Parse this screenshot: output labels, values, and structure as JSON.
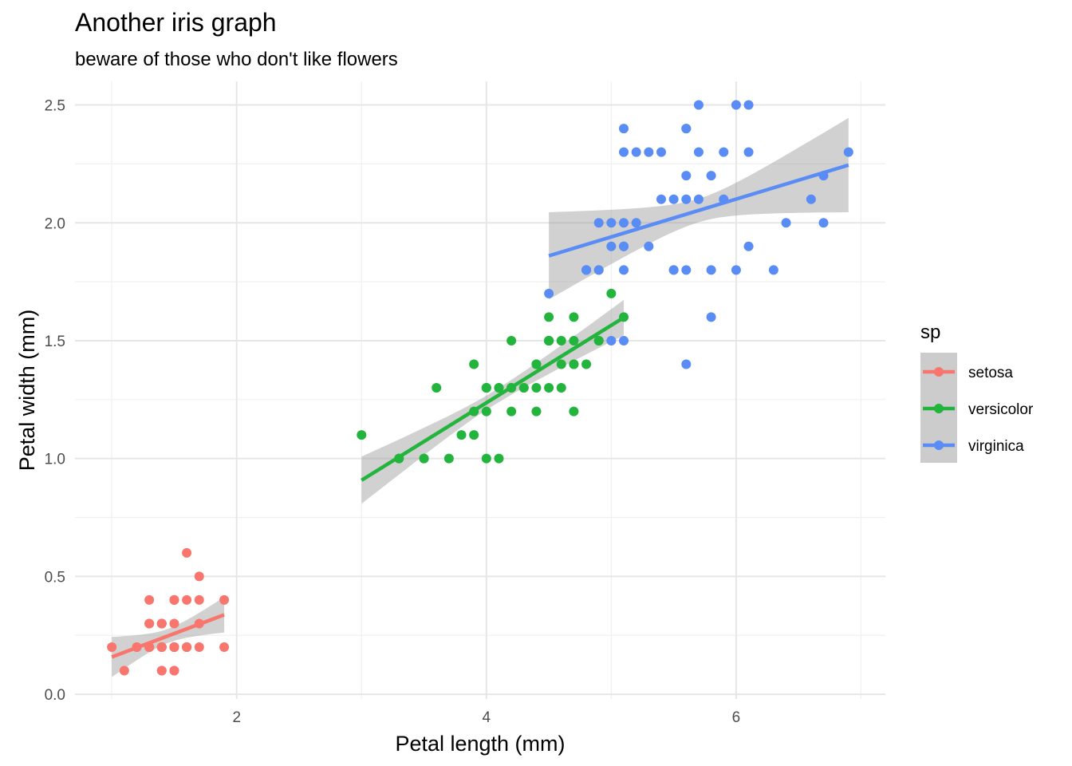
{
  "chart_data": {
    "type": "scatter",
    "title": "Another iris graph",
    "subtitle": "beware of those who don't like flowers",
    "xlabel": "Petal length (mm)",
    "ylabel": "Petal width (mm)",
    "xlim": [
      0.705,
      7.195
    ],
    "ylim": [
      -0.02,
      2.6
    ],
    "x_ticks": [
      2,
      4,
      6
    ],
    "x_tick_labels": [
      "2",
      "4",
      "6"
    ],
    "y_ticks": [
      0.0,
      0.5,
      1.0,
      1.5,
      2.0,
      2.5
    ],
    "y_tick_labels": [
      "0.0",
      "0.5",
      "1.0",
      "1.5",
      "2.0",
      "2.5"
    ],
    "grid": true,
    "legend": {
      "title": "sp",
      "position": "right"
    },
    "series": [
      {
        "name": "setosa",
        "color": "#F8766D",
        "fit": {
          "x": [
            1.0,
            1.9
          ],
          "y": [
            0.158,
            0.337
          ],
          "ci_halfwidth_ends": [
            0.085,
            0.075
          ],
          "ci_halfwidth_center": 0.03
        },
        "points": [
          [
            1.4,
            0.2
          ],
          [
            1.4,
            0.2
          ],
          [
            1.3,
            0.2
          ],
          [
            1.5,
            0.2
          ],
          [
            1.4,
            0.2
          ],
          [
            1.7,
            0.4
          ],
          [
            1.4,
            0.3
          ],
          [
            1.5,
            0.2
          ],
          [
            1.4,
            0.2
          ],
          [
            1.5,
            0.1
          ],
          [
            1.5,
            0.2
          ],
          [
            1.6,
            0.2
          ],
          [
            1.4,
            0.1
          ],
          [
            1.1,
            0.1
          ],
          [
            1.2,
            0.2
          ],
          [
            1.5,
            0.4
          ],
          [
            1.3,
            0.4
          ],
          [
            1.4,
            0.3
          ],
          [
            1.7,
            0.3
          ],
          [
            1.5,
            0.3
          ],
          [
            1.7,
            0.2
          ],
          [
            1.5,
            0.4
          ],
          [
            1.0,
            0.2
          ],
          [
            1.7,
            0.5
          ],
          [
            1.9,
            0.2
          ],
          [
            1.6,
            0.2
          ],
          [
            1.6,
            0.4
          ],
          [
            1.5,
            0.2
          ],
          [
            1.4,
            0.2
          ],
          [
            1.6,
            0.2
          ],
          [
            1.6,
            0.2
          ],
          [
            1.5,
            0.4
          ],
          [
            1.5,
            0.1
          ],
          [
            1.4,
            0.2
          ],
          [
            1.5,
            0.2
          ],
          [
            1.2,
            0.2
          ],
          [
            1.3,
            0.2
          ],
          [
            1.4,
            0.1
          ],
          [
            1.3,
            0.2
          ],
          [
            1.5,
            0.2
          ],
          [
            1.3,
            0.3
          ],
          [
            1.3,
            0.3
          ],
          [
            1.3,
            0.2
          ],
          [
            1.6,
            0.6
          ],
          [
            1.9,
            0.4
          ],
          [
            1.4,
            0.3
          ],
          [
            1.6,
            0.2
          ],
          [
            1.4,
            0.2
          ],
          [
            1.5,
            0.2
          ],
          [
            1.4,
            0.2
          ]
        ]
      },
      {
        "name": "versicolor",
        "color": "#22B43C",
        "fit": {
          "x": [
            3.0,
            5.1
          ],
          "y": [
            0.908,
            1.598
          ],
          "ci_halfwidth_ends": [
            0.1,
            0.075
          ],
          "ci_halfwidth_center": 0.03
        },
        "points": [
          [
            4.7,
            1.4
          ],
          [
            4.5,
            1.5
          ],
          [
            4.9,
            1.5
          ],
          [
            4.0,
            1.3
          ],
          [
            4.6,
            1.5
          ],
          [
            4.5,
            1.3
          ],
          [
            4.7,
            1.6
          ],
          [
            3.3,
            1.0
          ],
          [
            4.6,
            1.3
          ],
          [
            3.9,
            1.4
          ],
          [
            3.5,
            1.0
          ],
          [
            4.2,
            1.5
          ],
          [
            4.0,
            1.0
          ],
          [
            4.7,
            1.4
          ],
          [
            3.6,
            1.3
          ],
          [
            4.4,
            1.4
          ],
          [
            4.5,
            1.5
          ],
          [
            4.1,
            1.0
          ],
          [
            4.5,
            1.5
          ],
          [
            3.9,
            1.1
          ],
          [
            4.8,
            1.8
          ],
          [
            4.0,
            1.3
          ],
          [
            4.9,
            1.5
          ],
          [
            4.7,
            1.2
          ],
          [
            4.3,
            1.3
          ],
          [
            4.4,
            1.4
          ],
          [
            4.8,
            1.4
          ],
          [
            5.0,
            1.7
          ],
          [
            4.5,
            1.5
          ],
          [
            3.5,
            1.0
          ],
          [
            3.8,
            1.1
          ],
          [
            3.7,
            1.0
          ],
          [
            3.9,
            1.2
          ],
          [
            5.1,
            1.6
          ],
          [
            4.5,
            1.5
          ],
          [
            4.5,
            1.6
          ],
          [
            4.7,
            1.5
          ],
          [
            4.4,
            1.3
          ],
          [
            4.1,
            1.3
          ],
          [
            4.0,
            1.3
          ],
          [
            4.4,
            1.2
          ],
          [
            4.6,
            1.4
          ],
          [
            4.0,
            1.2
          ],
          [
            3.3,
            1.0
          ],
          [
            4.2,
            1.3
          ],
          [
            4.2,
            1.2
          ],
          [
            4.2,
            1.3
          ],
          [
            4.3,
            1.3
          ],
          [
            3.0,
            1.1
          ],
          [
            4.1,
            1.3
          ]
        ]
      },
      {
        "name": "virginica",
        "color": "#5A8CF5",
        "fit": {
          "x": [
            4.5,
            6.9
          ],
          "y": [
            1.86,
            2.245
          ],
          "ci_halfwidth_ends": [
            0.185,
            0.2
          ],
          "ci_halfwidth_center": 0.05
        },
        "points": [
          [
            6.0,
            2.5
          ],
          [
            5.1,
            1.9
          ],
          [
            5.9,
            2.1
          ],
          [
            5.6,
            1.8
          ],
          [
            5.8,
            2.2
          ],
          [
            6.6,
            2.1
          ],
          [
            4.5,
            1.7
          ],
          [
            6.3,
            1.8
          ],
          [
            5.8,
            1.8
          ],
          [
            6.1,
            2.5
          ],
          [
            5.1,
            2.0
          ],
          [
            5.3,
            1.9
          ],
          [
            5.5,
            2.1
          ],
          [
            5.0,
            2.0
          ],
          [
            5.1,
            2.4
          ],
          [
            5.3,
            2.3
          ],
          [
            5.5,
            1.8
          ],
          [
            6.7,
            2.2
          ],
          [
            6.9,
            2.3
          ],
          [
            5.0,
            1.5
          ],
          [
            5.7,
            2.3
          ],
          [
            4.9,
            2.0
          ],
          [
            6.7,
            2.0
          ],
          [
            4.9,
            1.8
          ],
          [
            5.7,
            2.1
          ],
          [
            6.0,
            1.8
          ],
          [
            4.8,
            1.8
          ],
          [
            4.9,
            1.8
          ],
          [
            5.6,
            2.1
          ],
          [
            5.8,
            1.6
          ],
          [
            6.1,
            1.9
          ],
          [
            6.4,
            2.0
          ],
          [
            5.6,
            2.2
          ],
          [
            5.1,
            1.5
          ],
          [
            5.6,
            1.4
          ],
          [
            6.1,
            2.3
          ],
          [
            5.6,
            2.4
          ],
          [
            5.5,
            1.8
          ],
          [
            4.8,
            1.8
          ],
          [
            5.4,
            2.1
          ],
          [
            5.6,
            2.4
          ],
          [
            5.1,
            2.3
          ],
          [
            5.1,
            1.9
          ],
          [
            5.9,
            2.3
          ],
          [
            5.7,
            2.5
          ],
          [
            5.2,
            2.3
          ],
          [
            5.0,
            1.9
          ],
          [
            5.2,
            2.0
          ],
          [
            5.4,
            2.3
          ],
          [
            5.1,
            1.8
          ]
        ]
      }
    ]
  }
}
